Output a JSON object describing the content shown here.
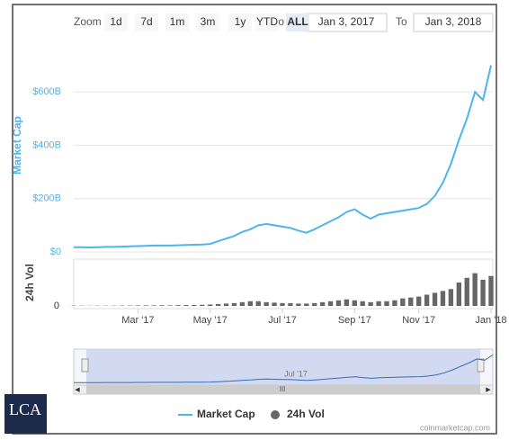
{
  "toolbar": {
    "zoom_label": "Zoom",
    "buttons": [
      "1d",
      "7d",
      "1m",
      "3m",
      "1y",
      "YTD",
      "ALL"
    ],
    "from_label": "Fro",
    "from": "Jan 3, 2017",
    "to_label": "To",
    "to": "Jan 3, 2018"
  },
  "chart_data": {
    "type": "line",
    "y_axis_title": "Market Cap",
    "categories": [
      null,
      null,
      null,
      null,
      null,
      null,
      null,
      null,
      "Mar '17",
      null,
      null,
      null,
      null,
      null,
      null,
      null,
      null,
      "May '17",
      null,
      null,
      null,
      null,
      null,
      null,
      null,
      null,
      "Jul '17",
      null,
      null,
      null,
      null,
      null,
      null,
      null,
      null,
      "Sep '17",
      null,
      null,
      null,
      null,
      null,
      null,
      null,
      "Nov '17",
      null,
      null,
      null,
      null,
      null,
      null,
      null,
      null,
      "Jan '18"
    ],
    "series": [
      {
        "name": "Market Cap",
        "color": "#4fb3ec",
        "values": [
          18,
          18,
          17,
          18,
          19,
          19,
          20,
          21,
          22,
          23,
          24,
          24,
          24,
          25,
          26,
          27,
          28,
          30,
          40,
          50,
          60,
          75,
          85,
          100,
          105,
          100,
          95,
          90,
          80,
          72,
          85,
          100,
          115,
          130,
          150,
          160,
          140,
          125,
          140,
          145,
          150,
          155,
          160,
          165,
          180,
          210,
          260,
          330,
          420,
          500,
          600,
          570,
          700
        ]
      },
      {
        "name": "24h Vol",
        "type": "bar",
        "pane": "volume",
        "color": "#666666",
        "values": [
          0.3,
          0.3,
          0.2,
          0.3,
          0.3,
          0.3,
          0.4,
          0.4,
          0.5,
          0.6,
          0.6,
          0.7,
          0.6,
          0.8,
          0.9,
          1,
          1.2,
          1.5,
          2,
          2.5,
          3,
          4,
          5,
          5,
          4,
          3.5,
          3,
          3,
          2.5,
          2.5,
          3,
          4,
          5,
          6,
          7,
          6,
          5,
          4,
          5,
          5,
          6,
          8,
          9,
          10,
          12,
          14,
          16,
          18,
          25,
          30,
          35,
          28,
          32
        ]
      }
    ],
    "ylim": [
      0,
      800
    ],
    "yticks": [
      {
        "value": 0,
        "label": "$0"
      },
      {
        "value": 200,
        "label": "$200B"
      },
      {
        "value": 400,
        "label": "$400B"
      },
      {
        "value": 600,
        "label": "$600B"
      }
    ],
    "volume_axis_title": "24h Vol",
    "volume_ylim": [
      0,
      50
    ],
    "volume_yticks": [
      0
    ],
    "legend": "bottom"
  },
  "credit": "coinmarketcap.com",
  "logo": "LCA"
}
